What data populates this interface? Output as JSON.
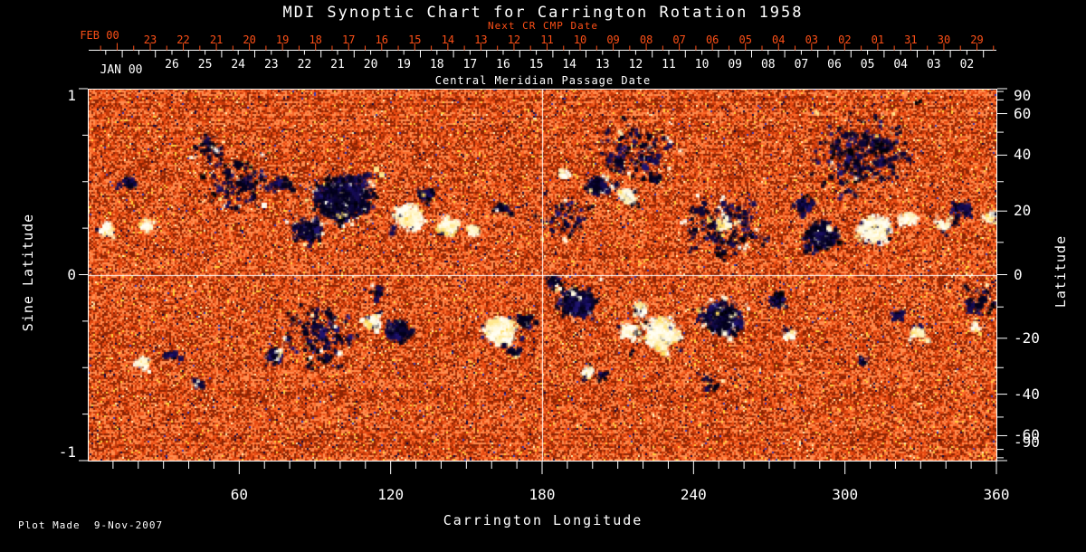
{
  "title": "MDI Synoptic Chart for Carrington Rotation 1958",
  "plot_made": "Plot Made  9-Nov-2007",
  "colors": {
    "background": "#000000",
    "text": "#ffffff",
    "accent": "#fb4f17"
  },
  "chart_data": {
    "type": "heatmap",
    "title": "MDI Synoptic Chart for Carrington Rotation 1958",
    "xlabel": "Carrington Longitude",
    "ylabel_left": "Sine Latitude",
    "ylabel_right": "Latitude",
    "xlim": [
      0,
      360
    ],
    "ylim_sine": [
      -1,
      1
    ],
    "x_ticks": [
      60,
      120,
      180,
      240,
      300,
      360
    ],
    "x_minor_step_deg": 10,
    "left_ticks": [
      1,
      0,
      -1
    ],
    "left_minor_step": 0.25,
    "right_ticks_deg": [
      90,
      60,
      40,
      20,
      0,
      -20,
      -40,
      -60,
      -90
    ],
    "right_minor_step_deg": 10,
    "grid": "crosshair only",
    "crosshair": {
      "longitude": 180,
      "sine_latitude": 0
    },
    "top_axis": {
      "sublabel": "Next CR CMP Date",
      "label": "Central Meridian Passage Date",
      "next_cr_month": "FEB 00",
      "next_cr_days": [
        "23",
        "22",
        "21",
        "20",
        "19",
        "18",
        "17",
        "16",
        "15",
        "14",
        "13",
        "12",
        "11",
        "10",
        "09",
        "08",
        "07",
        "06",
        "05",
        "04",
        "03",
        "02",
        "01",
        "31",
        "30",
        "29"
      ],
      "cmp_month": "JAN 00",
      "cmp_days": [
        "26",
        "25",
        "24",
        "23",
        "22",
        "21",
        "20",
        "19",
        "18",
        "17",
        "16",
        "15",
        "14",
        "13",
        "12",
        "11",
        "10",
        "09",
        "08",
        "07",
        "06",
        "05",
        "04",
        "03",
        "02"
      ]
    },
    "legend": "orange = quiet Sun, white/yellow = positive magnetic polarity, dark blue/black = negative polarity",
    "colormap": {
      "quiet": [
        "#8c2404",
        "#c13708",
        "#e84a12",
        "#fb6a2a",
        "#ff8c4e"
      ],
      "positive": [
        "#fffef4",
        "#fffae0",
        "#fff3bc",
        "#ffe88e",
        "#ffdc5c"
      ],
      "negative": [
        "#04021c",
        "#0c0636",
        "#150b52",
        "#1f1470",
        "#000008"
      ],
      "speckle_yellow": "#ffd23c",
      "speckle_cream": "#ffefb4",
      "speckle_navy": "#10083e",
      "speckle_blue": "#3a3ab8"
    },
    "region_fields": [
      "lon",
      "sin_lat",
      "radius_deg",
      "polarity",
      "density"
    ],
    "active_regions": [
      [
        100,
        0.42,
        15.1,
        "neg",
        0.95
      ],
      [
        86,
        0.25,
        7.9,
        "neg",
        0.6
      ],
      [
        75,
        0.5,
        5.4,
        "neg",
        0.3
      ],
      [
        126,
        0.32,
        7.2,
        "pos",
        0.9
      ],
      [
        142,
        0.27,
        5.7,
        "pos",
        0.85
      ],
      [
        133,
        0.44,
        4.7,
        "neg",
        0.5
      ],
      [
        152,
        0.25,
        3.2,
        "pos",
        0.7
      ],
      [
        163,
        0.37,
        3.6,
        "neg",
        0.35
      ],
      [
        201,
        0.49,
        6.1,
        "neg",
        0.8
      ],
      [
        213,
        0.43,
        4.7,
        "pos",
        0.85
      ],
      [
        224,
        0.52,
        3.2,
        "neg",
        0.4
      ],
      [
        290,
        0.22,
        9.3,
        "neg",
        0.7
      ],
      [
        283,
        0.38,
        5.4,
        "neg",
        0.45
      ],
      [
        311,
        0.25,
        8.6,
        "pos",
        0.9
      ],
      [
        324,
        0.31,
        4.3,
        "pos",
        0.6
      ],
      [
        338,
        0.28,
        4.3,
        "pos",
        0.4
      ],
      [
        346,
        0.36,
        5.0,
        "neg",
        0.35
      ],
      [
        357,
        0.32,
        3.6,
        "pos",
        0.7
      ],
      [
        6,
        0.25,
        3.6,
        "pos",
        0.6
      ],
      [
        23,
        0.27,
        3.2,
        "pos",
        0.5
      ],
      [
        15,
        0.5,
        4.3,
        "neg",
        0.3
      ],
      [
        163,
        -0.29,
        8.6,
        "pos",
        0.95
      ],
      [
        172,
        -0.24,
        3.6,
        "neg",
        0.6
      ],
      [
        168,
        -0.41,
        3.2,
        "neg",
        0.5
      ],
      [
        193,
        -0.15,
        10.0,
        "neg",
        0.85
      ],
      [
        184,
        -0.03,
        4.3,
        "neg",
        0.5
      ],
      [
        213,
        -0.3,
        4.7,
        "pos",
        0.7
      ],
      [
        226,
        -0.31,
        10.8,
        "pos",
        0.75
      ],
      [
        218,
        -0.18,
        4.3,
        "pos",
        0.5
      ],
      [
        250,
        -0.23,
        10.8,
        "neg",
        0.85
      ],
      [
        272,
        -0.13,
        5.0,
        "neg",
        0.35
      ],
      [
        112,
        -0.24,
        5.0,
        "pos",
        0.6
      ],
      [
        122,
        -0.3,
        6.5,
        "neg",
        0.6
      ],
      [
        114,
        -0.08,
        3.6,
        "neg",
        0.3
      ],
      [
        21,
        -0.47,
        3.9,
        "pos",
        0.7
      ],
      [
        32,
        -0.43,
        3.2,
        "neg",
        0.5
      ],
      [
        73,
        -0.43,
        4.3,
        "neg",
        0.5
      ],
      [
        43,
        -0.58,
        2.9,
        "neg",
        0.45
      ],
      [
        328,
        -0.3,
        3.9,
        "pos",
        0.7
      ],
      [
        320,
        -0.22,
        3.2,
        "neg",
        0.5
      ],
      [
        351,
        -0.28,
        2.9,
        "pos",
        0.3
      ],
      [
        306,
        -0.46,
        2.9,
        "neg",
        0.4
      ],
      [
        197,
        -0.52,
        3.6,
        "pos",
        0.7
      ],
      [
        203,
        -0.54,
        2.5,
        "neg",
        0.5
      ],
      [
        245,
        -0.57,
        5.4,
        "neg",
        0.15
      ],
      [
        306,
        0.67,
        28.7,
        "neg",
        0.07
      ],
      [
        216,
        0.67,
        21.5,
        "neg",
        0.07
      ],
      [
        58,
        0.5,
        17.9,
        "neg",
        0.08
      ],
      [
        91,
        -0.32,
        21.5,
        "neg",
        0.07
      ],
      [
        252,
        0.26,
        21.5,
        "neg",
        0.08
      ],
      [
        188,
        0.31,
        14.3,
        "neg",
        0.07
      ],
      [
        353,
        -0.13,
        10.8,
        "neg",
        0.1
      ],
      [
        252,
        0.29,
        5.0,
        "pos",
        0.25
      ],
      [
        277,
        -0.32,
        3.6,
        "pos",
        0.3
      ],
      [
        188,
        0.55,
        3.6,
        "pos",
        0.25
      ],
      [
        48,
        0.7,
        9.0,
        "neg",
        0.12
      ]
    ]
  }
}
